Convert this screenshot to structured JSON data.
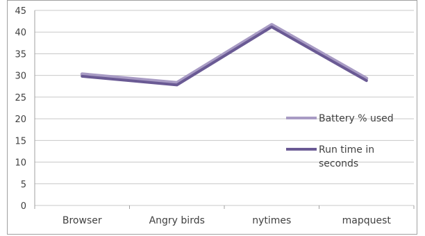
{
  "chart_data": {
    "type": "line",
    "categories": [
      "Browser",
      "Angry birds",
      "nytimes",
      "mapquest"
    ],
    "ylim": [
      0,
      45
    ],
    "yticks": [
      0,
      5,
      10,
      15,
      20,
      25,
      30,
      35,
      40,
      45
    ],
    "grid": true,
    "legend_position": "right",
    "series": [
      {
        "name": "Battery % used",
        "values": [
          30.3,
          28.3,
          41.7,
          29.3
        ],
        "color": "#a89bc4"
      },
      {
        "name": "Run time in seconds",
        "values": [
          29.8,
          27.8,
          41.2,
          28.8
        ],
        "color": "#6a5a94"
      }
    ],
    "legend": {
      "battery_label": "Battery % used",
      "runtime_label_line1": "Run time in",
      "runtime_label_line2": "seconds"
    }
  }
}
